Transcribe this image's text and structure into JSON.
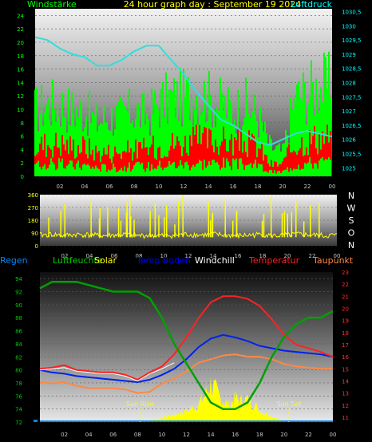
{
  "colors": {
    "background": "#000000",
    "wind_axis": "#00ff00",
    "pressure_axis": "#00ffff",
    "direction_axis": "#ffff00",
    "title": "#ffff00",
    "rain": "#0088ff",
    "humidity": "#00cc00",
    "solar": "#ffff00",
    "soil_temp": "#0000ff",
    "windchill": "#ffffff",
    "temperature": "#ff2222",
    "dewpoint": "#ff8844",
    "right_temp_axis": "#ff3030"
  },
  "chart_data": [
    {
      "type": "area",
      "title": "24 hour graph day : September 19 2024",
      "left_label": "Windstärke",
      "right_label": "Luftdruck",
      "x_ticks": [
        "02",
        "04",
        "06",
        "08",
        "10",
        "12",
        "14",
        "16",
        "18",
        "20",
        "22",
        "00"
      ],
      "y_ticks": [
        0,
        2,
        4,
        6,
        8,
        10,
        12,
        14,
        16,
        18,
        20,
        22,
        24
      ],
      "y_range": [
        0,
        25
      ],
      "y2_ticks": [
        "1025",
        "1025,5",
        "1026",
        "1026,5",
        "1027",
        "1027,5",
        "1028",
        "1028,5",
        "1029",
        "1029,5",
        "1030",
        "1030,5"
      ],
      "y2_range": [
        1024.7,
        1030.6
      ],
      "series": [
        {
          "name": "Böen",
          "color": "#00ff00",
          "x": [
            0,
            1,
            2,
            3,
            4,
            5,
            6,
            7,
            8,
            9,
            10,
            11,
            12,
            13,
            14,
            15,
            16,
            17,
            18,
            19,
            20,
            21,
            22,
            23,
            24
          ],
          "y": [
            11,
            12,
            12,
            11,
            11,
            9,
            10,
            10,
            11,
            10,
            12,
            13,
            13,
            14,
            13,
            12,
            11,
            12,
            10,
            5,
            4,
            13,
            14,
            15,
            15
          ]
        },
        {
          "name": "Wind",
          "color": "#ff0000",
          "x": [
            0,
            1,
            2,
            3,
            4,
            5,
            6,
            7,
            8,
            9,
            10,
            11,
            12,
            13,
            14,
            15,
            16,
            17,
            18,
            19,
            20,
            21,
            22,
            23,
            24
          ],
          "y": [
            5,
            5.5,
            5.5,
            5,
            5,
            4,
            4,
            4,
            4.5,
            4.5,
            5,
            5.5,
            5.5,
            6,
            6,
            6,
            5.5,
            5.5,
            5,
            2,
            2,
            5.5,
            6,
            6.5,
            6.5
          ]
        },
        {
          "name": "Luftdruck",
          "color": "#33dddd",
          "x": [
            0,
            1,
            2,
            3,
            4,
            5,
            6,
            7,
            8,
            9,
            10,
            11,
            12,
            13,
            14,
            15,
            16,
            17,
            18,
            19,
            20,
            21,
            22,
            23,
            24
          ],
          "y": [
            1029.6,
            1029.5,
            1029.2,
            1029.0,
            1028.9,
            1028.6,
            1028.6,
            1028.8,
            1029.1,
            1029.3,
            1029.3,
            1028.8,
            1028.3,
            1027.7,
            1027.2,
            1026.7,
            1026.5,
            1026.2,
            1025.9,
            1025.8,
            1026.0,
            1026.2,
            1026.3,
            1026.2,
            1026.1
          ]
        }
      ]
    },
    {
      "type": "line",
      "title": "",
      "right_labels": [
        "N",
        "W",
        "S",
        "O",
        "N"
      ],
      "x_ticks": [
        "02",
        "04",
        "06",
        "08",
        "10",
        "12",
        "14",
        "16",
        "18",
        "20",
        "22",
        "00"
      ],
      "y_ticks": [
        0,
        90,
        180,
        270,
        360
      ],
      "y_range": [
        0,
        360
      ],
      "series": [
        {
          "name": "Windrichtung",
          "color": "#ffff00",
          "x": [
            0,
            1,
            2,
            3,
            4,
            5,
            6,
            7,
            8,
            9,
            10,
            11,
            12,
            13,
            14,
            15,
            16,
            17,
            18,
            19,
            20,
            21,
            22,
            23,
            24
          ],
          "y": [
            75,
            80,
            70,
            80,
            75,
            70,
            75,
            80,
            70,
            75,
            70,
            75,
            80,
            75,
            80,
            75,
            70,
            75,
            80,
            70,
            75,
            80,
            75,
            70,
            75
          ]
        }
      ]
    },
    {
      "type": "line",
      "title": "",
      "legend": [
        "Regen",
        "Luftfeuchte",
        "Solar",
        "Temp Boden",
        "Windchill",
        "Temperatur",
        "Taupunkt"
      ],
      "annotations": [
        "Sun Rise",
        "Sun Set"
      ],
      "x_ticks": [
        "02",
        "04",
        "06",
        "08",
        "10",
        "12",
        "14",
        "16",
        "18",
        "20",
        "22",
        "00"
      ],
      "y_ticks": [
        72,
        74,
        76,
        78,
        80,
        82,
        84,
        86,
        88,
        90,
        92,
        94
      ],
      "y_range": [
        72,
        95
      ],
      "y2_ticks": [
        11,
        12,
        13,
        14,
        15,
        16,
        17,
        18,
        19,
        20,
        21,
        22,
        23
      ],
      "y2_range": [
        10.6,
        23
      ],
      "series": [
        {
          "name": "Luftfeuchte",
          "color": "#00a000",
          "x": [
            0,
            1,
            2,
            3,
            4,
            5,
            6,
            7,
            8,
            9,
            10,
            11,
            12,
            13,
            14,
            15,
            16,
            17,
            18,
            19,
            20,
            21,
            22,
            23,
            24
          ],
          "y": [
            92.5,
            93.5,
            93.5,
            93.5,
            93,
            92.5,
            92,
            92,
            92,
            91,
            88,
            84,
            81,
            78,
            75,
            74,
            74,
            75,
            78,
            82,
            85,
            87,
            88,
            88,
            89
          ]
        },
        {
          "name": "Temperatur",
          "color": "#ff2222",
          "x": [
            0,
            1,
            2,
            3,
            4,
            5,
            6,
            7,
            8,
            9,
            10,
            11,
            12,
            13,
            14,
            15,
            16,
            17,
            18,
            19,
            20,
            21,
            22,
            23,
            24
          ],
          "y": [
            15.0,
            15.1,
            15.3,
            14.9,
            14.8,
            14.7,
            14.7,
            14.5,
            14.1,
            14.7,
            15.2,
            16.2,
            17.6,
            19.2,
            20.5,
            21.0,
            21.0,
            20.8,
            20.2,
            19.1,
            17.8,
            17.0,
            16.7,
            16.4,
            16.0
          ]
        },
        {
          "name": "Temp Boden",
          "color": "#0022ee",
          "x": [
            0,
            1,
            2,
            3,
            4,
            5,
            6,
            7,
            8,
            9,
            10,
            11,
            12,
            13,
            14,
            15,
            16,
            17,
            18,
            19,
            20,
            21,
            22,
            23,
            24
          ],
          "y": [
            14.9,
            14.7,
            14.6,
            14.4,
            14.3,
            14.2,
            14.1,
            14.0,
            13.9,
            14.1,
            14.5,
            15.0,
            15.8,
            16.8,
            17.5,
            17.8,
            17.6,
            17.3,
            16.9,
            16.7,
            16.5,
            16.4,
            16.3,
            16.2,
            16.0
          ]
        },
        {
          "name": "Taupunkt",
          "color": "#ff8844",
          "x": [
            0,
            1,
            2,
            3,
            4,
            5,
            6,
            7,
            8,
            9,
            10,
            11,
            12,
            13,
            14,
            15,
            16,
            17,
            18,
            19,
            20,
            21,
            22,
            23,
            24
          ],
          "y": [
            13.9,
            13.8,
            13.9,
            13.6,
            13.4,
            13.4,
            13.4,
            13.3,
            13.0,
            13.1,
            13.8,
            14.2,
            14.8,
            15.5,
            15.8,
            16.1,
            16.2,
            16.0,
            16.0,
            15.8,
            15.4,
            15.2,
            15.1,
            15.0,
            15.0
          ]
        },
        {
          "name": "Windchill",
          "color": "#ffffff",
          "x": [
            0,
            1,
            2,
            3,
            4,
            5,
            6,
            7,
            8,
            9,
            10,
            11
          ],
          "y": [
            14.9,
            15.0,
            15.1,
            14.8,
            14.7,
            14.6,
            14.6,
            14.4,
            14.0,
            14.6,
            15.0,
            15.5
          ]
        },
        {
          "name": "Solar",
          "color": "#ffff00",
          "x": [
            8.5,
            9,
            10,
            11,
            12,
            13,
            13.5,
            14,
            14.5,
            15,
            15.5,
            16,
            16.5,
            17,
            17.5,
            18,
            19,
            20
          ],
          "y": [
            72.1,
            72.3,
            72.7,
            73.2,
            73.8,
            75.0,
            76.5,
            78.5,
            77.0,
            75.5,
            74.8,
            76.0,
            75.5,
            75.8,
            75.0,
            74.0,
            73.0,
            72.1
          ]
        }
      ]
    }
  ]
}
